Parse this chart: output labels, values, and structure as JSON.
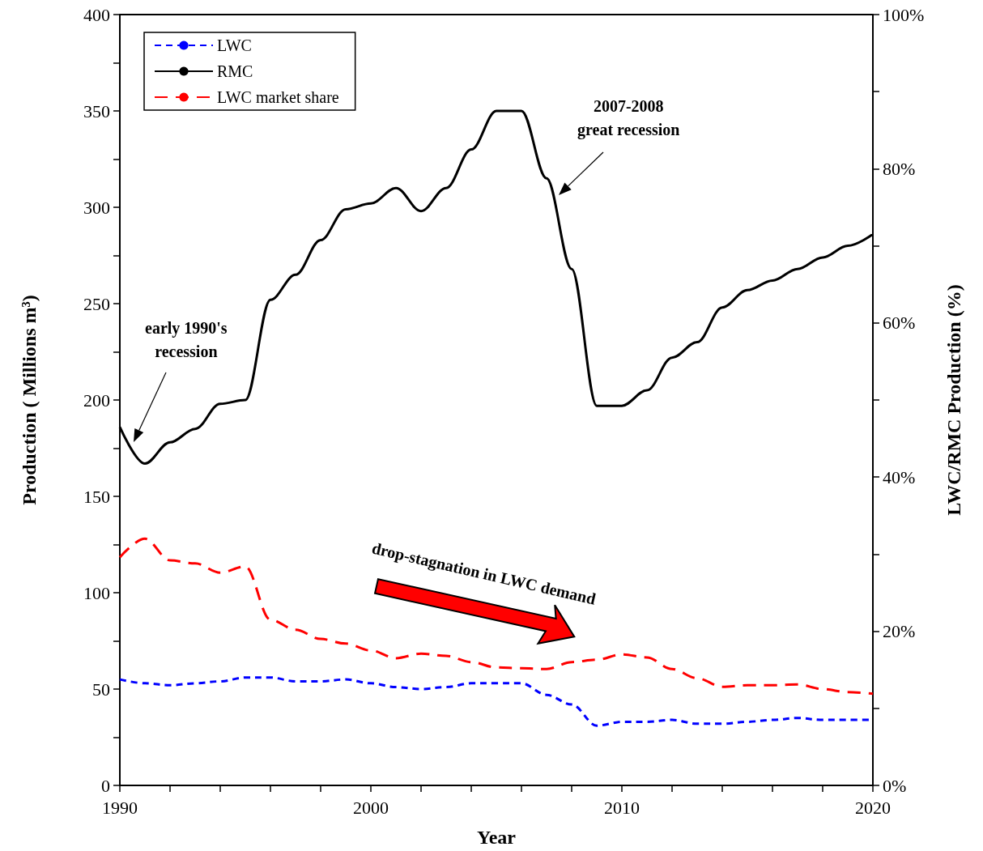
{
  "chart_data": {
    "type": "line",
    "xlabel": "Year",
    "ylabel": "Production ( Millions m³)",
    "y2label": "LWC/RMC Production (%)",
    "xlim": [
      1990,
      2020
    ],
    "xticks": [
      1990,
      {
        "value": 1992,
        "label": null
      },
      {
        "value": 1994,
        "label": null
      },
      {
        "value": 1996,
        "label": null
      },
      {
        "value": 1998,
        "label": null
      },
      2000,
      {
        "value": 2002,
        "label": null
      },
      {
        "value": 2004,
        "label": null
      },
      {
        "value": 2006,
        "label": null
      },
      {
        "value": 2008,
        "label": null
      },
      2010,
      {
        "value": 2012,
        "label": null
      },
      {
        "value": 2014,
        "label": null
      },
      {
        "value": 2016,
        "label": null
      },
      {
        "value": 2018,
        "label": null
      },
      2020
    ],
    "ylim": [
      0,
      400
    ],
    "yticks": [
      0,
      {
        "value": 25,
        "label": null
      },
      50,
      {
        "value": 75,
        "label": null
      },
      100,
      {
        "value": 125,
        "label": null
      },
      150,
      {
        "value": 175,
        "label": null
      },
      200,
      {
        "value": 225,
        "label": null
      },
      250,
      {
        "value": 275,
        "label": null
      },
      300,
      {
        "value": 325,
        "label": null
      },
      350,
      {
        "value": 375,
        "label": null
      },
      400
    ],
    "y2lim": [
      0,
      100
    ],
    "y2ticks": [
      {
        "value": 0,
        "label": "0%"
      },
      {
        "value": 10,
        "label": null
      },
      {
        "value": 20,
        "label": "20%"
      },
      {
        "value": 30,
        "label": null
      },
      {
        "value": 40,
        "label": "40%"
      },
      {
        "value": 50,
        "label": null
      },
      {
        "value": 60,
        "label": "60%"
      },
      {
        "value": 70,
        "label": null
      },
      {
        "value": 80,
        "label": "80%"
      },
      {
        "value": 90,
        "label": null
      },
      {
        "value": 100,
        "label": "100%"
      }
    ],
    "x": [
      1990,
      1991,
      1992,
      1993,
      1994,
      1995,
      1996,
      1997,
      1998,
      1999,
      2000,
      2001,
      2002,
      2003,
      2004,
      2005,
      2006,
      2007,
      2008,
      2009,
      2010,
      2011,
      2012,
      2013,
      2014,
      2015,
      2016,
      2017,
      2018,
      2019,
      2020
    ],
    "series": [
      {
        "name": "LWC",
        "color": "#0000ff",
        "line_style": "dashed",
        "values": [
          55,
          53,
          52,
          53,
          54,
          56,
          56,
          54,
          54,
          55,
          53,
          51,
          50,
          51,
          53,
          53,
          53,
          47,
          42,
          31,
          33,
          33,
          34,
          32,
          32,
          33,
          34,
          35,
          34,
          34,
          34
        ]
      },
      {
        "name": "RMC",
        "color": "#000000",
        "line_style": "solid",
        "values": [
          186,
          167,
          178,
          185,
          198,
          200,
          252,
          265,
          283,
          299,
          302,
          310,
          298,
          310,
          330,
          350,
          350,
          315,
          268,
          197,
          197,
          205,
          222,
          230,
          248,
          257,
          262,
          268,
          274,
          280,
          286
        ]
      },
      {
        "name": "LWC market share",
        "color": "#ff0000",
        "line_style": "dashed",
        "axis": "y2",
        "values": [
          29.6,
          32,
          29.2,
          28.8,
          27.6,
          28.4,
          21.5,
          20.2,
          19,
          18.4,
          17.5,
          16.5,
          17.1,
          16.8,
          16,
          15.3,
          15.2,
          15.1,
          16,
          16.3,
          17,
          16.6,
          15.1,
          13.9,
          12.8,
          13,
          13,
          13.1,
          12.5,
          12.1,
          11.9
        ]
      }
    ],
    "annotations": [
      "early 1990's recession",
      "2007-2008 great recession",
      "drop-stagnation  in LWC demand"
    ],
    "legend": "top left",
    "grid": false,
    "marker": "none"
  }
}
